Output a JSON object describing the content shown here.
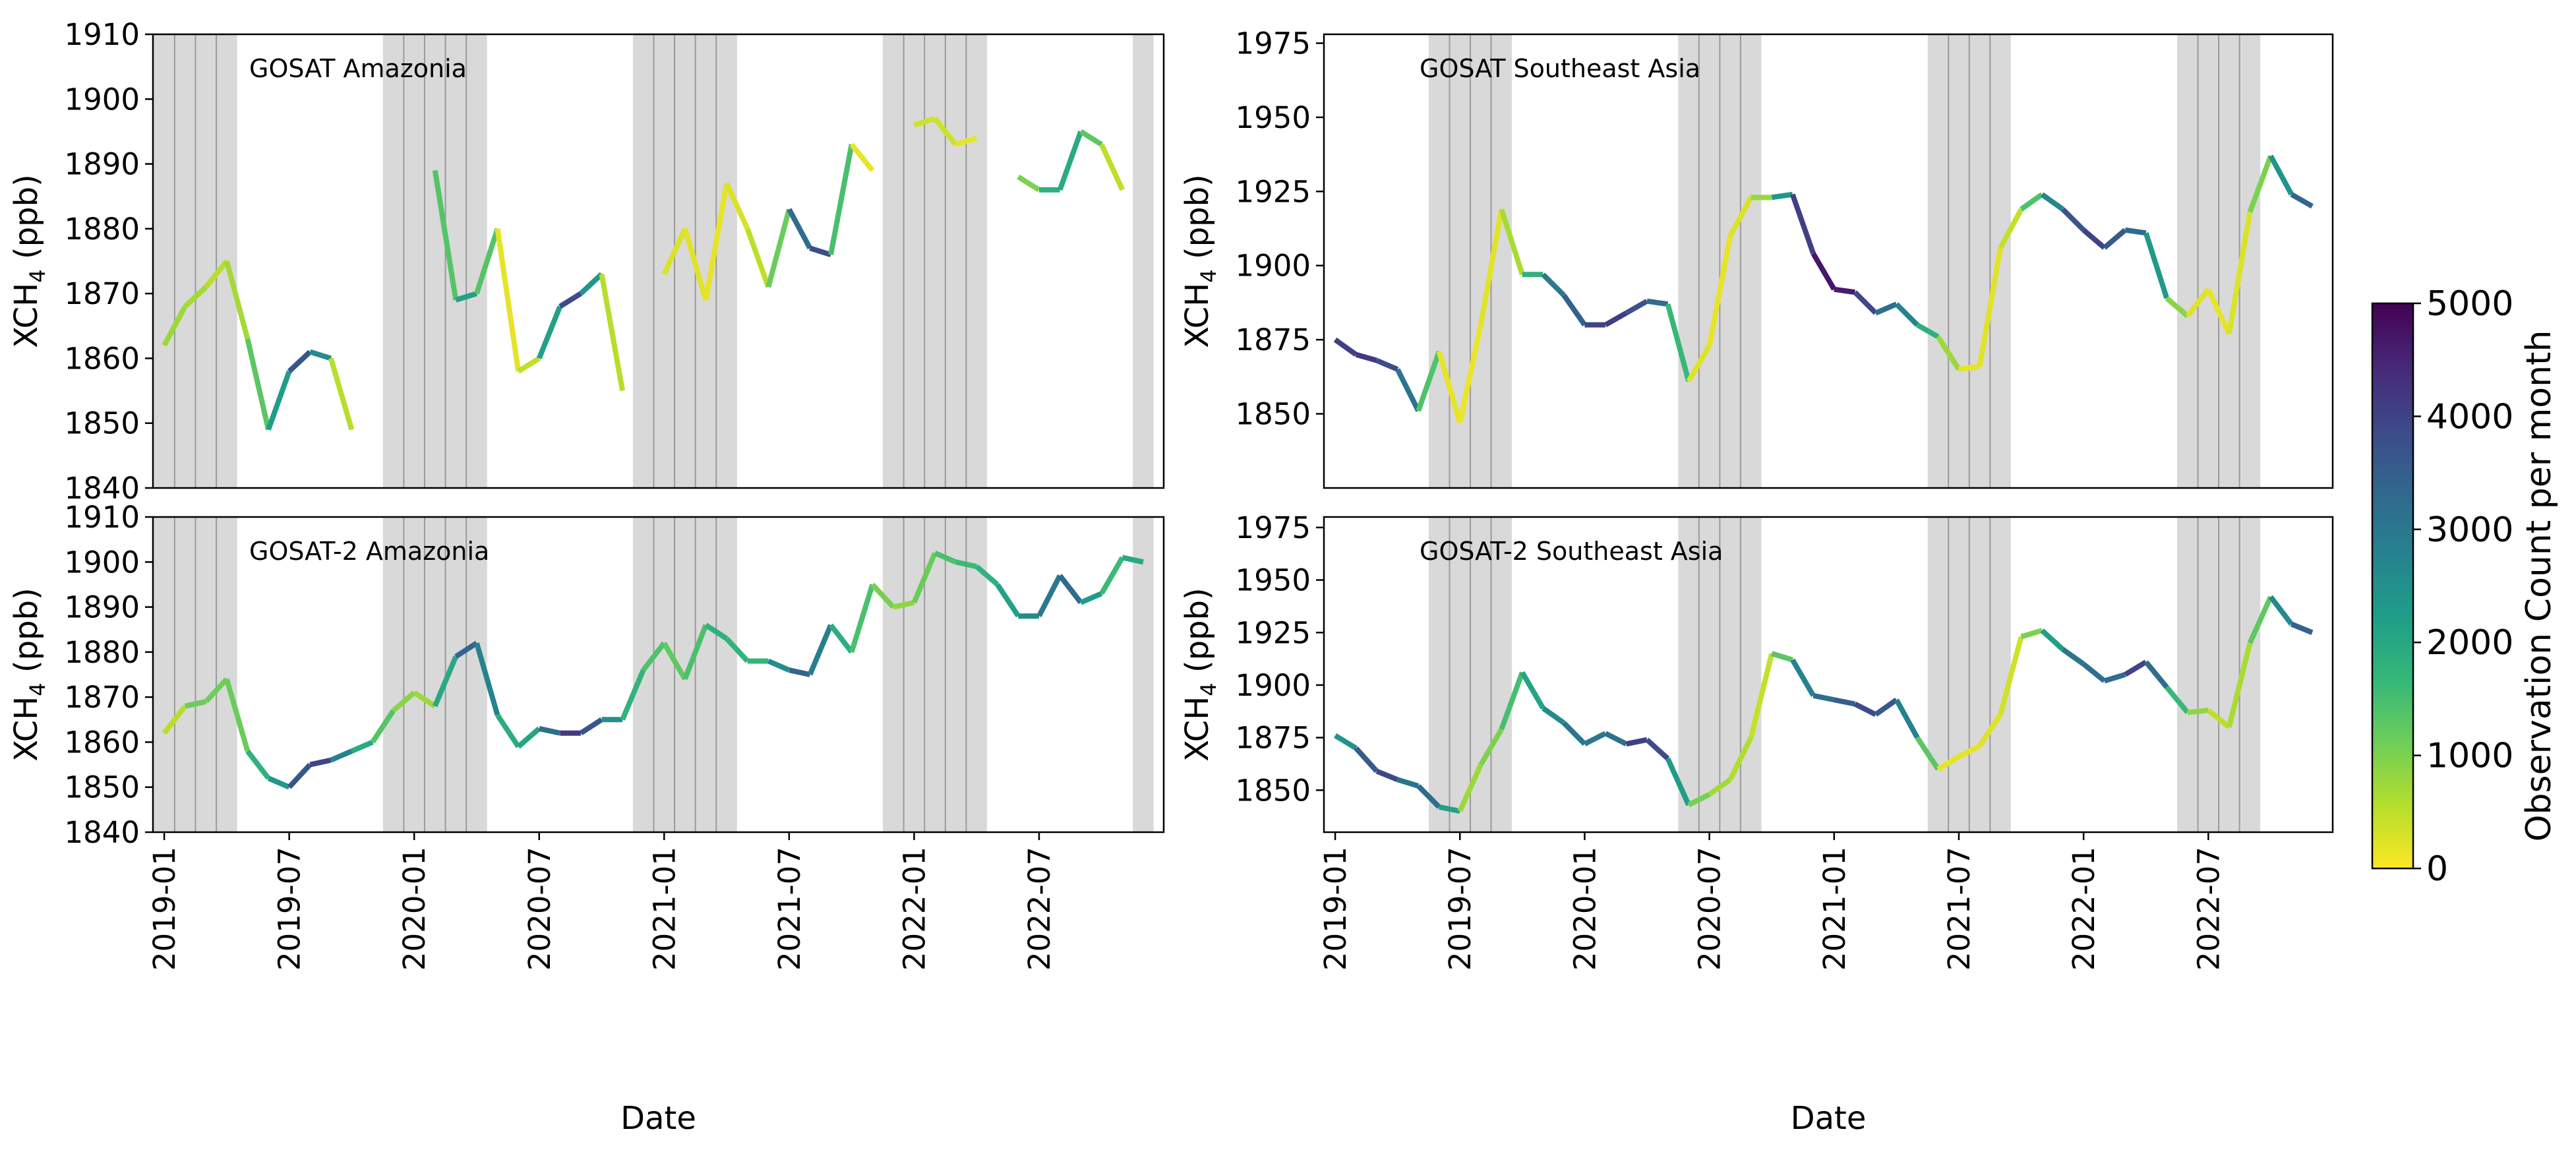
{
  "chart_data": [
    {
      "type": "line",
      "title": "GOSAT Amazonia",
      "xlabel": "",
      "ylabel": "XCH4 (ppb)",
      "ylim": [
        1840,
        1910
      ],
      "yticks": [
        1840,
        1850,
        1860,
        1870,
        1880,
        1890,
        1900,
        1910
      ],
      "xlim": [
        "2018-12-15",
        "2022-12-31"
      ],
      "shaded_months": [
        "2019-01",
        "2019-02",
        "2019-03",
        "2019-04",
        "2019-12",
        "2020-01",
        "2020-02",
        "2020-03",
        "2020-04",
        "2020-12",
        "2021-01",
        "2021-02",
        "2021-03",
        "2021-04",
        "2021-12",
        "2022-01",
        "2022-02",
        "2022-03",
        "2022-04",
        "2022-12"
      ],
      "series": [
        {
          "name": "XCH4",
          "segments": [
            {
              "x": [
                "2019-01",
                "2019-02",
                "2019-03",
                "2019-04",
                "2019-05",
                "2019-06",
                "2019-07",
                "2019-08",
                "2019-09",
                "2019-10",
                "2019-11"
              ],
              "y": [
                1862,
                1868,
                1871,
                1875,
                1863,
                1849,
                1858,
                1861,
                1860,
                1849,
                null
              ],
              "count": [
                700,
                800,
                600,
                500,
                900,
                1700,
                2800,
                4500,
                600,
                500,
                0
              ]
            },
            {
              "x": [
                "2020-02",
                "2020-03",
                "2020-04",
                "2020-05",
                "2020-06",
                "2020-07",
                "2020-08",
                "2020-09",
                "2020-10",
                "2020-11"
              ],
              "y": [
                1889,
                1869,
                1870,
                1880,
                1858,
                1860,
                1868,
                1870,
                1873,
                1855
              ],
              "count": [
                900,
                1800,
                2500,
                200,
                150,
                800,
                3500,
                4200,
                600,
                500
              ]
            },
            {
              "x": [
                "2021-01",
                "2021-02",
                "2021-03",
                "2021-04",
                "2021-05",
                "2021-06",
                "2021-07",
                "2021-08",
                "2021-09",
                "2021-10",
                "2021-11"
              ],
              "y": [
                1873,
                1880,
                1869,
                1887,
                1880,
                1871,
                1883,
                1877,
                1876,
                1893,
                1889
              ],
              "count": [
                300,
                250,
                200,
                150,
                400,
                600,
                1700,
                4800,
                2800,
                150,
                200
              ]
            },
            {
              "x": [
                "2022-01",
                "2022-02",
                "2022-03",
                "2022-04"
              ],
              "y": [
                1896,
                1897,
                1893,
                1894
              ],
              "count": [
                150,
                600,
                150,
                200
              ]
            },
            {
              "x": [
                "2022-06",
                "2022-07",
                "2022-08",
                "2022-09",
                "2022-10",
                "2022-11"
              ],
              "y": [
                1888,
                1886,
                1886,
                1895,
                1893,
                1886
              ],
              "count": [
                300,
                1700,
                2000,
                1900,
                700,
                300
              ]
            }
          ]
        }
      ]
    },
    {
      "type": "line",
      "title": "GOSAT Southeast Asia",
      "xlabel": "",
      "ylabel": "XCH4 (ppb)",
      "ylim": [
        1825,
        1978
      ],
      "yticks": [
        1850,
        1875,
        1900,
        1925,
        1950,
        1975
      ],
      "xlim": [
        "2018-12-15",
        "2022-12-31"
      ],
      "shaded_months": [
        "2019-06",
        "2019-07",
        "2019-08",
        "2019-09",
        "2020-06",
        "2020-07",
        "2020-08",
        "2020-09",
        "2021-06",
        "2021-07",
        "2021-08",
        "2021-09",
        "2022-06",
        "2022-07",
        "2022-08",
        "2022-09"
      ],
      "series": [
        {
          "name": "XCH4",
          "segments": [
            {
              "x": [
                "2019-01",
                "2019-02",
                "2019-03",
                "2019-04",
                "2019-05",
                "2019-06",
                "2019-07",
                "2019-08",
                "2019-09",
                "2019-10",
                "2019-11",
                "2019-12",
                "2020-01",
                "2020-02",
                "2020-03",
                "2020-04",
                "2020-05",
                "2020-06",
                "2020-07",
                "2020-08",
                "2020-09",
                "2020-10",
                "2020-11",
                "2020-12",
                "2021-01",
                "2021-02",
                "2021-03",
                "2021-04",
                "2021-05",
                "2021-06",
                "2021-07",
                "2021-08",
                "2021-09",
                "2021-10",
                "2021-11",
                "2021-12",
                "2022-01",
                "2022-02",
                "2022-03",
                "2022-04",
                "2022-05",
                "2022-06",
                "2022-07",
                "2022-08",
                "2022-09",
                "2022-10",
                "2022-11",
                "2022-12"
              ],
              "y": [
                1875,
                1870,
                1868,
                1865,
                1851,
                1871,
                1847,
                1880,
                1919,
                1897,
                1897,
                1890,
                1880,
                1880,
                1884,
                1888,
                1887,
                1861,
                1873,
                1910,
                1923,
                1923,
                1924,
                1904,
                1892,
                1891,
                1884,
                1887,
                1880,
                1876,
                1865,
                1866,
                1906,
                1919,
                1924,
                1919,
                1912,
                1906,
                1912,
                1911,
                1889,
                1883,
                1892,
                1877,
                1918,
                1937,
                1924,
                1920
              ],
              "count": [
                3800,
                4300,
                4000,
                3600,
                2600,
                200,
                150,
                150,
                300,
                1000,
                2600,
                3300,
                3700,
                4200,
                3900,
                3500,
                3000,
                300,
                200,
                150,
                400,
                1200,
                3500,
                4600,
                4800,
                4500,
                3300,
                3100,
                2400,
                1300,
                200,
                150,
                300,
                600,
                2200,
                3200,
                4200,
                3800,
                3400,
                3200,
                1500,
                300,
                200,
                150,
                400,
                1600,
                3200,
                3600
              ]
            }
          ]
        }
      ]
    },
    {
      "type": "line",
      "title": "GOSAT-2 Amazonia",
      "xlabel": "Date",
      "ylabel": "XCH4 (ppb)",
      "ylim": [
        1840,
        1910
      ],
      "yticks": [
        1840,
        1850,
        1860,
        1870,
        1880,
        1890,
        1900,
        1910
      ],
      "xticks": [
        "2019-01",
        "2019-07",
        "2020-01",
        "2020-07",
        "2021-01",
        "2021-07",
        "2022-01",
        "2022-07"
      ],
      "xlim": [
        "2018-12-15",
        "2022-12-31"
      ],
      "shaded_months": [
        "2019-01",
        "2019-02",
        "2019-03",
        "2019-04",
        "2019-12",
        "2020-01",
        "2020-02",
        "2020-03",
        "2020-04",
        "2020-12",
        "2021-01",
        "2021-02",
        "2021-03",
        "2021-04",
        "2021-12",
        "2022-01",
        "2022-02",
        "2022-03",
        "2022-04",
        "2022-12"
      ],
      "series": [
        {
          "name": "XCH4",
          "segments": [
            {
              "x": [
                "2019-01",
                "2019-02",
                "2019-03",
                "2019-04",
                "2019-05",
                "2019-06",
                "2019-07",
                "2019-08",
                "2019-09",
                "2019-10",
                "2019-11",
                "2019-12",
                "2020-01",
                "2020-02",
                "2020-03",
                "2020-04",
                "2020-05",
                "2020-06",
                "2020-07",
                "2020-08",
                "2020-09",
                "2020-10",
                "2020-11",
                "2020-12",
                "2021-01",
                "2021-02",
                "2021-03",
                "2021-04",
                "2021-05",
                "2021-06",
                "2021-07",
                "2021-08",
                "2021-09",
                "2021-10",
                "2021-11",
                "2021-12",
                "2022-01",
                "2022-02",
                "2022-03",
                "2022-04",
                "2022-05",
                "2022-06",
                "2022-07",
                "2022-08",
                "2022-09",
                "2022-10",
                "2022-11",
                "2022-12"
              ],
              "y": [
                1862,
                1868,
                1869,
                1874,
                1858,
                1852,
                1850,
                1855,
                1856,
                1858,
                1860,
                1867,
                1871,
                1868,
                1879,
                1882,
                1866,
                1859,
                1863,
                1862,
                1862,
                1865,
                1865,
                1876,
                1882,
                1874,
                1886,
                1883,
                1878,
                1878,
                1876,
                1875,
                1886,
                1880,
                1895,
                1890,
                1891,
                1902,
                1900,
                1899,
                1895,
                1888,
                1888,
                1897,
                1891,
                1893,
                1901,
                1900
              ],
              "count": [
                300,
                800,
                1500,
                700,
                1600,
                2000,
                2700,
                4600,
                3300,
                2200,
                1700,
                1000,
                800,
                700,
                3300,
                3500,
                2000,
                1800,
                2400,
                4000,
                4300,
                3000,
                2000,
                1500,
                1300,
                1200,
                1700,
                1900,
                1600,
                1800,
                3300,
                3500,
                2200,
                1600,
                1300,
                800,
                900,
                1400,
                1500,
                1700,
                1900,
                2400,
                2800,
                3200,
                3300,
                1200,
                2000,
                2000
              ]
            }
          ]
        }
      ]
    },
    {
      "type": "line",
      "title": "GOSAT-2 Southeast Asia",
      "xlabel": "Date",
      "ylabel": "XCH4 (ppb)",
      "ylim": [
        1830,
        1980
      ],
      "yticks": [
        1850,
        1875,
        1900,
        1925,
        1950,
        1975
      ],
      "xticks": [
        "2019-01",
        "2019-07",
        "2020-01",
        "2020-07",
        "2021-01",
        "2021-07",
        "2022-01",
        "2022-07"
      ],
      "xlim": [
        "2018-12-15",
        "2022-12-31"
      ],
      "shaded_months": [
        "2019-06",
        "2019-07",
        "2019-08",
        "2019-09",
        "2020-06",
        "2020-07",
        "2020-08",
        "2020-09",
        "2021-06",
        "2021-07",
        "2021-08",
        "2021-09",
        "2022-06",
        "2022-07",
        "2022-08",
        "2022-09"
      ],
      "series": [
        {
          "name": "XCH4",
          "segments": [
            {
              "x": [
                "2019-01",
                "2019-02",
                "2019-03",
                "2019-04",
                "2019-05",
                "2019-06",
                "2019-07",
                "2019-08",
                "2019-09",
                "2019-10",
                "2019-11",
                "2019-12",
                "2020-01",
                "2020-02",
                "2020-03",
                "2020-04",
                "2020-05",
                "2020-06",
                "2020-07",
                "2020-08",
                "2020-09",
                "2020-10",
                "2020-11",
                "2020-12",
                "2021-01",
                "2021-02",
                "2021-03",
                "2021-04",
                "2021-05",
                "2021-06",
                "2021-07",
                "2021-08",
                "2021-09",
                "2021-10",
                "2021-11",
                "2021-12",
                "2022-01",
                "2022-02",
                "2022-03",
                "2022-04",
                "2022-05",
                "2022-06",
                "2022-07",
                "2022-08",
                "2022-09",
                "2022-10",
                "2022-11",
                "2022-12"
              ],
              "y": [
                1876,
                1870,
                1859,
                1855,
                1852,
                1842,
                1840,
                1862,
                1879,
                1906,
                1889,
                1882,
                1872,
                1877,
                1872,
                1874,
                1865,
                1843,
                1848,
                1855,
                1875,
                1915,
                1912,
                1895,
                1893,
                1891,
                1886,
                1893,
                1875,
                1860,
                1866,
                1871,
                1886,
                1923,
                1926,
                1917,
                1910,
                1902,
                1905,
                1911,
                1899,
                1887,
                1888,
                1880,
                1920,
                1942,
                1929,
                1925
              ],
              "count": [
                2300,
                2600,
                4500,
                3300,
                2900,
                3600,
                700,
                800,
                1200,
                1800,
                2400,
                2800,
                3300,
                2700,
                3600,
                4500,
                3200,
                1300,
                800,
                600,
                600,
                300,
                2300,
                3200,
                3300,
                3700,
                4000,
                3200,
                2400,
                200,
                150,
                200,
                300,
                400,
                1600,
                2800,
                3300,
                3100,
                3400,
                4500,
                2000,
                1300,
                400,
                600,
                700,
                1800,
                3400,
                3500
              ]
            }
          ]
        }
      ]
    }
  ],
  "colorbar": {
    "label": "Observation Count per month",
    "ticks": [
      0,
      1000,
      2000,
      3000,
      4000,
      5000
    ],
    "min": 0,
    "max": 5000,
    "colormap": "viridis_r",
    "stops": [
      "#fde725",
      "#b5de2b",
      "#6ece58",
      "#35b779",
      "#1f9e89",
      "#26828e",
      "#31688e",
      "#3e4989",
      "#482878",
      "#440154"
    ]
  },
  "ylabel_text": "XCH",
  "ylabel_sub": "4",
  "ylabel_unit": " (ppb)"
}
